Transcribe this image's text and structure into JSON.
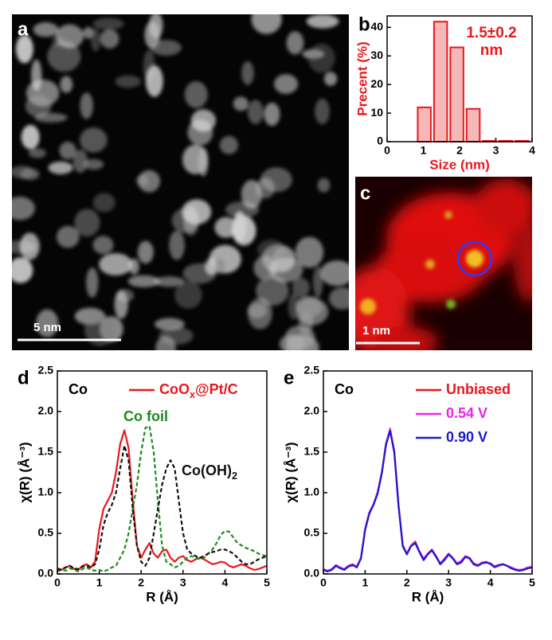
{
  "images": [
    {
      "panel": "a",
      "scale_bar": "5 nm"
    },
    {
      "panel": "c",
      "scale_bar": "1 nm"
    }
  ],
  "chart_data": [
    {
      "type": "histogram",
      "panel": "b",
      "xlabel": "Size (nm)",
      "ylabel": "Precent (%)",
      "annotation": [
        "1.5±0.2",
        "nm"
      ],
      "color": "#e8191e",
      "fill": "#f5b8b8",
      "bins": [
        0.8,
        1.25,
        1.7,
        2.15,
        2.6,
        3.05,
        3.5,
        3.95
      ],
      "counts": [
        12,
        42,
        33,
        11.5,
        0.3,
        0.3,
        0.3
      ],
      "xlim": [
        0,
        4
      ],
      "ylim": [
        0,
        44
      ],
      "xticks": [
        0,
        1,
        2,
        3,
        4
      ],
      "yticks": [
        0,
        10,
        20,
        30,
        40
      ]
    },
    {
      "type": "line",
      "panel": "d",
      "element": "Co",
      "xlabel": "R (Å)",
      "ylabel": "χ(R) (Å⁻³)",
      "xlim": [
        0,
        5
      ],
      "ylim": [
        0,
        2.5
      ],
      "xticks": [
        0,
        1,
        2,
        3,
        4,
        5
      ],
      "yticks": [
        {
          "value": 0,
          "label": "0.0"
        },
        {
          "value": 0.5,
          "label": "0.5"
        },
        {
          "value": 1,
          "label": "1.0"
        },
        {
          "value": 1.5,
          "label": "1.5"
        },
        {
          "value": 2,
          "label": "2.0"
        },
        {
          "value": 2.5,
          "label": "2.5"
        }
      ],
      "x": [
        0,
        0.1,
        0.2,
        0.3,
        0.4,
        0.5,
        0.6,
        0.7,
        0.8,
        0.9,
        1,
        1.1,
        1.2,
        1.3,
        1.4,
        1.5,
        1.6,
        1.7,
        1.8,
        1.9,
        2,
        2.1,
        2.2,
        2.3,
        2.4,
        2.5,
        2.6,
        2.7,
        2.8,
        2.9,
        3,
        3.1,
        3.2,
        3.3,
        3.4,
        3.5,
        3.6,
        3.7,
        3.8,
        3.9,
        4,
        4.1,
        4.2,
        4.3,
        4.4,
        4.5,
        4.6,
        4.7,
        4.8,
        4.9,
        5
      ],
      "series": [
        {
          "name": "CoOx@Pt/C",
          "color": "#e8191e",
          "dash": false,
          "values": [
            0.07,
            0.05,
            0.08,
            0.1,
            0.06,
            0.05,
            0.1,
            0.12,
            0.08,
            0.15,
            0.55,
            0.8,
            0.9,
            1.0,
            1.25,
            1.6,
            1.77,
            1.55,
            0.9,
            0.35,
            0.2,
            0.3,
            0.38,
            0.25,
            0.2,
            0.28,
            0.3,
            0.2,
            0.15,
            0.2,
            0.22,
            0.17,
            0.15,
            0.18,
            0.2,
            0.18,
            0.15,
            0.12,
            0.13,
            0.15,
            0.14,
            0.1,
            0.08,
            0.1,
            0.12,
            0.1,
            0.07,
            0.05,
            0.06,
            0.08,
            0.1
          ]
        },
        {
          "name": "Co foil",
          "color": "#1e8a1e",
          "dash": true,
          "values": [
            0.03,
            0.05,
            0.04,
            0.07,
            0.05,
            0.03,
            0.06,
            0.08,
            0.05,
            0.04,
            0.05,
            0.03,
            0.05,
            0.08,
            0.1,
            0.2,
            0.3,
            0.5,
            0.8,
            1.1,
            1.5,
            1.8,
            1.82,
            1.5,
            0.9,
            0.35,
            0.15,
            0.12,
            0.08,
            0.1,
            0.15,
            0.2,
            0.22,
            0.2,
            0.18,
            0.2,
            0.25,
            0.3,
            0.38,
            0.48,
            0.53,
            0.52,
            0.45,
            0.38,
            0.35,
            0.32,
            0.3,
            0.28,
            0.25,
            0.23,
            0.22
          ]
        },
        {
          "name": "Co(OH)2",
          "color": "#111111",
          "dash": true,
          "values": [
            0.05,
            0.06,
            0.08,
            0.1,
            0.07,
            0.06,
            0.09,
            0.1,
            0.08,
            0.12,
            0.3,
            0.6,
            0.75,
            0.85,
            1.0,
            1.3,
            1.58,
            1.4,
            0.8,
            0.35,
            0.15,
            0.1,
            0.2,
            0.5,
            0.8,
            1.1,
            1.3,
            1.4,
            1.3,
            0.9,
            0.5,
            0.3,
            0.25,
            0.22,
            0.2,
            0.22,
            0.25,
            0.27,
            0.28,
            0.3,
            0.3,
            0.28,
            0.25,
            0.2,
            0.15,
            0.12,
            0.12,
            0.15,
            0.18,
            0.2,
            0.22
          ]
        }
      ]
    },
    {
      "type": "line",
      "panel": "e",
      "element": "Co",
      "xlabel": "R (Å)",
      "ylabel": "χ(R) (Å⁻³)",
      "xlim": [
        0,
        5
      ],
      "ylim": [
        0,
        2.5
      ],
      "xticks": [
        0,
        1,
        2,
        3,
        4,
        5
      ],
      "yticks": [
        {
          "value": 0,
          "label": "0.0"
        },
        {
          "value": 0.5,
          "label": "0.5"
        },
        {
          "value": 1,
          "label": "1.0"
        },
        {
          "value": 1.5,
          "label": "1.5"
        },
        {
          "value": 2,
          "label": "2.0"
        },
        {
          "value": 2.5,
          "label": "2.5"
        }
      ],
      "x": [
        0,
        0.1,
        0.2,
        0.3,
        0.4,
        0.5,
        0.6,
        0.7,
        0.8,
        0.9,
        1,
        1.1,
        1.2,
        1.3,
        1.4,
        1.5,
        1.6,
        1.7,
        1.8,
        1.9,
        2,
        2.1,
        2.2,
        2.3,
        2.4,
        2.5,
        2.6,
        2.7,
        2.8,
        2.9,
        3,
        3.1,
        3.2,
        3.3,
        3.4,
        3.5,
        3.6,
        3.7,
        3.8,
        3.9,
        4,
        4.1,
        4.2,
        4.3,
        4.4,
        4.5,
        4.6,
        4.7,
        4.8,
        4.9,
        5
      ],
      "series": [
        {
          "name": "Unbiased",
          "color": "#e8191e",
          "dash": false,
          "values": [
            0.05,
            0.03,
            0.05,
            0.1,
            0.08,
            0.05,
            0.1,
            0.12,
            0.08,
            0.2,
            0.55,
            0.75,
            0.85,
            1.0,
            1.25,
            1.6,
            1.77,
            1.5,
            0.85,
            0.35,
            0.25,
            0.35,
            0.4,
            0.28,
            0.18,
            0.25,
            0.3,
            0.22,
            0.12,
            0.18,
            0.25,
            0.2,
            0.12,
            0.15,
            0.22,
            0.2,
            0.12,
            0.1,
            0.14,
            0.15,
            0.12,
            0.08,
            0.1,
            0.12,
            0.1,
            0.07,
            0.05,
            0.04,
            0.05,
            0.07,
            0.08
          ]
        },
        {
          "name": "0.54 V",
          "color": "#ee22ee",
          "dash": false,
          "values": [
            0.06,
            0.04,
            0.06,
            0.11,
            0.08,
            0.06,
            0.1,
            0.12,
            0.09,
            0.2,
            0.56,
            0.76,
            0.86,
            1.01,
            1.26,
            1.61,
            1.79,
            1.51,
            0.86,
            0.36,
            0.25,
            0.35,
            0.39,
            0.28,
            0.19,
            0.25,
            0.3,
            0.22,
            0.13,
            0.19,
            0.25,
            0.2,
            0.13,
            0.16,
            0.22,
            0.2,
            0.13,
            0.11,
            0.14,
            0.15,
            0.12,
            0.09,
            0.1,
            0.12,
            0.1,
            0.08,
            0.06,
            0.05,
            0.06,
            0.08,
            0.09
          ]
        },
        {
          "name": "0.90 V",
          "color": "#1a1acc",
          "dash": false,
          "values": [
            0.05,
            0.03,
            0.05,
            0.1,
            0.07,
            0.05,
            0.09,
            0.11,
            0.08,
            0.19,
            0.54,
            0.74,
            0.85,
            0.99,
            1.24,
            1.59,
            1.76,
            1.49,
            0.84,
            0.34,
            0.24,
            0.34,
            0.38,
            0.27,
            0.17,
            0.24,
            0.29,
            0.21,
            0.12,
            0.17,
            0.24,
            0.19,
            0.12,
            0.14,
            0.21,
            0.19,
            0.12,
            0.1,
            0.13,
            0.14,
            0.13,
            0.09,
            0.11,
            0.12,
            0.1,
            0.07,
            0.05,
            0.04,
            0.05,
            0.07,
            0.08
          ]
        }
      ]
    }
  ]
}
